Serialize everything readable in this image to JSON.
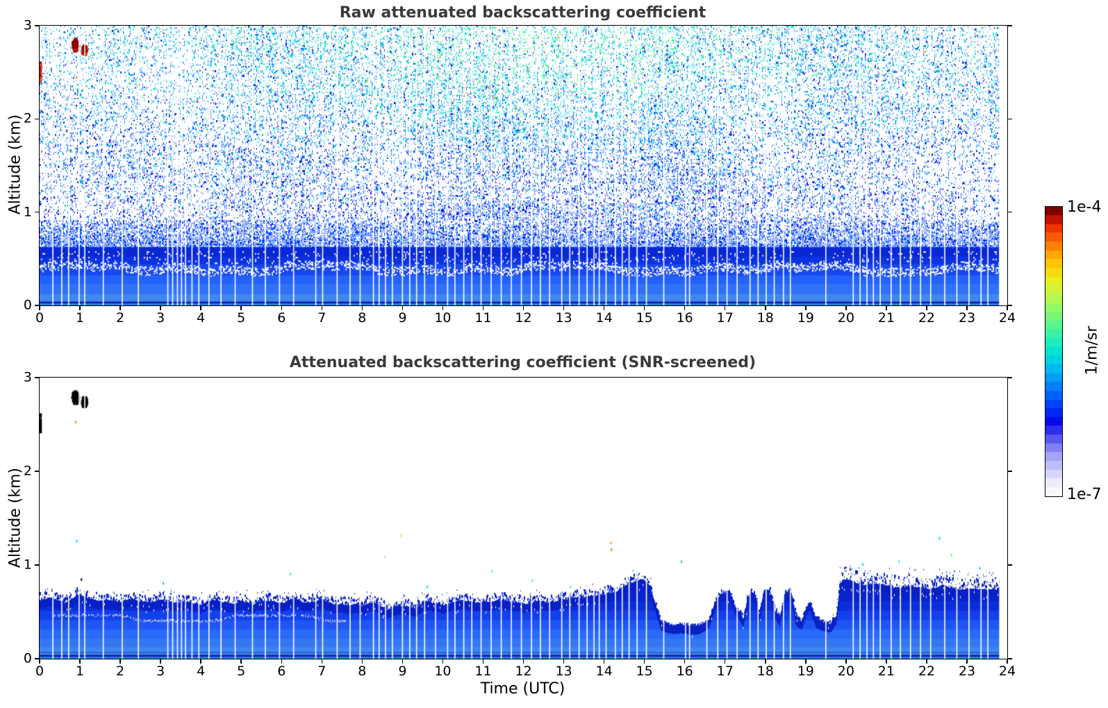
{
  "figure": {
    "background": "#ffffff"
  },
  "styles": {
    "title_color": "#3a3a3a",
    "axis_color": "#000000",
    "gap_color": "#ffffff"
  },
  "colorbar": {
    "label_top": "1e-4",
    "label_bottom": "1e-7",
    "unit": "1/m/sr",
    "scale": "log",
    "steps": 33,
    "colormap_stops": [
      [
        0.0,
        "#f8f8ff"
      ],
      [
        0.04,
        "#e8e8fc"
      ],
      [
        0.08,
        "#c8c8fa"
      ],
      [
        0.13,
        "#a0a0f8"
      ],
      [
        0.17,
        "#7070f4"
      ],
      [
        0.21,
        "#3838ee"
      ],
      [
        0.25,
        "#0808e8"
      ],
      [
        0.3,
        "#0038f8"
      ],
      [
        0.35,
        "#0068ff"
      ],
      [
        0.4,
        "#0098ff"
      ],
      [
        0.45,
        "#00c4f0"
      ],
      [
        0.5,
        "#00e4d0"
      ],
      [
        0.55,
        "#30f0b0"
      ],
      [
        0.6,
        "#60f488"
      ],
      [
        0.65,
        "#90f868"
      ],
      [
        0.7,
        "#c0f848"
      ],
      [
        0.75,
        "#e8ee20"
      ],
      [
        0.8,
        "#ffd000"
      ],
      [
        0.85,
        "#ffa000"
      ],
      [
        0.9,
        "#ff6000"
      ],
      [
        0.94,
        "#f03000"
      ],
      [
        0.97,
        "#c01000"
      ],
      [
        1.0,
        "#7c0000"
      ]
    ]
  },
  "chart_data": [
    {
      "type": "heatmap",
      "title": "Raw attenuated backscattering coefficient",
      "xlabel": "",
      "ylabel": "Altitude (km)",
      "xlim": [
        0,
        24
      ],
      "ylim": [
        0,
        3
      ],
      "xticks": [
        0,
        1,
        2,
        3,
        4,
        5,
        6,
        7,
        8,
        9,
        10,
        11,
        12,
        13,
        14,
        15,
        16,
        17,
        18,
        19,
        20,
        21,
        22,
        23,
        24
      ],
      "yticks": [
        0,
        1,
        2,
        3
      ],
      "legend": "none",
      "grid": false,
      "data_end_hour": 23.8,
      "seed": 42,
      "noise": {
        "base_density": 0.4,
        "cell": 2,
        "value_jitter": 0.12,
        "dark_dot_prob": 0.15,
        "lavender_prob": 0.02,
        "outlier_prob": 0.006
      },
      "dense_fuzz": {
        "t_lo": 9.0,
        "t_hi": 15.5,
        "alt_lo": 0.7,
        "alt_hi": 1.1,
        "extra": 0.22
      },
      "layer_bands": [
        [
          0.0,
          0.03,
          "#2e74f4"
        ],
        [
          0.03,
          0.048,
          "#0a1ca0"
        ],
        [
          0.048,
          0.13,
          "#4286f0"
        ],
        [
          0.13,
          0.24,
          "#2f72f8"
        ],
        [
          0.24,
          0.33,
          "#2261fa"
        ],
        [
          0.33,
          0.45,
          "#1848ee"
        ],
        [
          0.45,
          0.53,
          "#0d32e0"
        ],
        [
          0.53,
          0.625,
          "#0928d4"
        ]
      ],
      "layer_solid_top_km": 0.625,
      "layer_speckle_top_km": 0.92,
      "white_band": {
        "alt": 0.4,
        "amp": 0.035
      },
      "bottom_dash_color": "#00a878",
      "features": {
        "cloud_blobs": [
          {
            "t": 0.88,
            "alt": 2.8,
            "dt": 0.1,
            "dalt": 0.075,
            "color": "#8b0000",
            "fringe": "#d84000"
          },
          {
            "t": 1.1,
            "alt": 2.75,
            "dt": 0.08,
            "dalt": 0.06,
            "color": "#8b0000",
            "fringe": "#e06000"
          }
        ],
        "edge_streak": {
          "t": 0.02,
          "alt_lo": 2.4,
          "alt_hi": 2.62,
          "colors": [
            "#a00000",
            "#ff6000",
            "#d04000"
          ]
        },
        "dots": [
          {
            "t": 0.9,
            "alt": 2.46,
            "color": "#ff8c00"
          }
        ]
      },
      "gap_hours": [
        0.33,
        0.55,
        0.72,
        0.98,
        1.12,
        1.58,
        2.05,
        2.45,
        3.18,
        3.3,
        3.42,
        3.52,
        3.62,
        3.78,
        3.95,
        4.2,
        4.5,
        4.85,
        5.28,
        5.6,
        5.95,
        6.3,
        6.85,
        7.02,
        7.38,
        7.7,
        7.95,
        8.28,
        8.42,
        8.58,
        8.75,
        9.0,
        9.18,
        9.35,
        9.55,
        9.82,
        10.12,
        10.3,
        10.52,
        10.72,
        10.95,
        11.2,
        11.45,
        11.7,
        11.95,
        12.2,
        12.42,
        12.65,
        12.95,
        13.15,
        13.38,
        13.58,
        13.75,
        13.88,
        14.05,
        14.28,
        14.45,
        14.62,
        14.82,
        15.05,
        15.48,
        16.02,
        16.12,
        16.55,
        16.82,
        17.05,
        17.3,
        17.62,
        17.82,
        18.02,
        18.22,
        18.45,
        18.62,
        19.5,
        20.18,
        20.35,
        20.52,
        20.68,
        20.85,
        21.12,
        21.35,
        21.6,
        21.85,
        22.1,
        22.45,
        22.75,
        23.05,
        23.35,
        23.52
      ]
    },
    {
      "type": "heatmap",
      "title": "Attenuated backscattering coefficient (SNR-screened)",
      "xlabel": "Time (UTC)",
      "ylabel": "Altitude (km)",
      "xlim": [
        0,
        24
      ],
      "ylim": [
        0,
        3
      ],
      "xticks": [
        0,
        1,
        2,
        3,
        4,
        5,
        6,
        7,
        8,
        9,
        10,
        11,
        12,
        13,
        14,
        15,
        16,
        17,
        18,
        19,
        20,
        21,
        22,
        23,
        24
      ],
      "yticks": [
        0,
        1,
        2,
        3
      ],
      "legend": "none",
      "grid": false,
      "data_end_hour": 23.8,
      "seed": 7,
      "layer_top_profile": {
        "t": [
          0,
          0.3,
          0.6,
          1.0,
          1.35,
          1.7,
          2.0,
          2.3,
          2.7,
          3.0,
          3.3,
          3.7,
          4.0,
          4.3,
          4.7,
          5.0,
          5.3,
          5.6,
          6.0,
          6.3,
          6.6,
          7.0,
          7.3,
          7.6,
          8.0,
          8.3,
          8.6,
          9.0,
          9.3,
          9.6,
          10.0,
          10.4,
          10.8,
          11.2,
          11.6,
          12.0,
          12.4,
          12.8,
          13.2,
          13.6,
          14.0,
          14.3,
          14.6,
          14.9,
          15.1,
          15.25,
          15.4,
          15.7,
          16.0,
          16.3,
          16.6,
          16.75,
          16.9,
          17.1,
          17.25,
          17.35,
          17.45,
          17.55,
          17.65,
          17.75,
          17.85,
          17.95,
          18.1,
          18.2,
          18.35,
          18.5,
          18.65,
          18.75,
          18.9,
          19.0,
          19.1,
          19.25,
          19.4,
          19.6,
          19.75,
          19.85,
          20.0,
          20.4,
          20.8,
          21.2,
          21.6,
          22.0,
          22.4,
          22.8,
          23.2,
          23.5,
          23.8
        ],
        "h": [
          0.63,
          0.66,
          0.6,
          0.68,
          0.62,
          0.63,
          0.6,
          0.64,
          0.6,
          0.63,
          0.6,
          0.62,
          0.58,
          0.62,
          0.59,
          0.62,
          0.58,
          0.62,
          0.6,
          0.64,
          0.6,
          0.62,
          0.58,
          0.6,
          0.55,
          0.6,
          0.52,
          0.58,
          0.54,
          0.62,
          0.58,
          0.62,
          0.6,
          0.63,
          0.6,
          0.58,
          0.62,
          0.6,
          0.64,
          0.66,
          0.68,
          0.72,
          0.8,
          0.85,
          0.8,
          0.6,
          0.38,
          0.35,
          0.36,
          0.34,
          0.42,
          0.62,
          0.7,
          0.72,
          0.55,
          0.5,
          0.42,
          0.65,
          0.72,
          0.68,
          0.48,
          0.7,
          0.74,
          0.55,
          0.45,
          0.72,
          0.7,
          0.45,
          0.42,
          0.55,
          0.62,
          0.42,
          0.38,
          0.36,
          0.45,
          0.82,
          0.86,
          0.78,
          0.8,
          0.76,
          0.78,
          0.75,
          0.78,
          0.74,
          0.76,
          0.73,
          0.74
        ]
      },
      "layer_bands": [
        [
          0.0,
          0.03,
          "#2e74f4"
        ],
        [
          0.03,
          0.048,
          "#0a1ca0"
        ],
        [
          0.048,
          0.13,
          "#3e85f0"
        ],
        [
          0.13,
          0.22,
          "#3377f5"
        ],
        [
          0.22,
          0.32,
          "#2a6af8"
        ],
        [
          0.32,
          0.42,
          "#1e55f4"
        ],
        [
          0.42,
          0.52,
          "#1240ea"
        ],
        [
          0.52,
          0.62,
          "#0b2eda"
        ],
        [
          0.62,
          1.05,
          "#0a24cc"
        ]
      ],
      "layer_top_color": "#0820c4",
      "ragged": [
        {
          "t_lo": 0.0,
          "t_hi": 15.2,
          "amp": 0.09,
          "hole_p": 0.1,
          "speck_p": 0.1
        },
        {
          "t_lo": 15.25,
          "t_hi": 16.55,
          "amp": 0.03,
          "hole_p": 0.02,
          "speck_p": 0.02
        },
        {
          "t_lo": 16.6,
          "t_hi": 19.7,
          "amp": 0.05,
          "hole_p": 0.05,
          "speck_p": 0.04
        },
        {
          "t_lo": 19.75,
          "t_hi": 23.8,
          "amp": 0.14,
          "hole_p": 0.2,
          "speck_p": 0.3
        }
      ],
      "white_streak": {
        "t_lo": 0.3,
        "t_hi": 7.6,
        "alt": 0.44,
        "amp": 0.03
      },
      "bottom_dash_color": "#00a878",
      "features": {
        "black_blobs": [
          {
            "t": 0.88,
            "alt": 2.8,
            "dt": 0.1,
            "dalt": 0.075,
            "color": "#000000"
          },
          {
            "t": 1.1,
            "alt": 2.75,
            "dt": 0.08,
            "dalt": 0.06,
            "color": "#000000"
          }
        ],
        "edge_streak": {
          "t": 0.02,
          "alt_lo": 2.42,
          "alt_hi": 2.62,
          "colors": [
            "#000000"
          ]
        },
        "dots": [
          {
            "t": 0.88,
            "alt": 2.54,
            "color": "#ff8c00"
          },
          {
            "t": 0.9,
            "alt": 1.27,
            "color": "#00e0ff"
          },
          {
            "t": 1.02,
            "alt": 0.86,
            "color": "#1a1a1a"
          },
          {
            "t": 3.05,
            "alt": 0.82,
            "color": "#00d0ff"
          },
          {
            "t": 6.2,
            "alt": 0.92,
            "color": "#70e880"
          },
          {
            "t": 8.55,
            "alt": 1.1,
            "color": "#84ee5c"
          },
          {
            "t": 8.95,
            "alt": 1.33,
            "color": "#a8f050"
          },
          {
            "t": 9.6,
            "alt": 0.78,
            "color": "#00e0d0"
          },
          {
            "t": 11.2,
            "alt": 0.95,
            "color": "#00c8ff"
          },
          {
            "t": 12.2,
            "alt": 0.85,
            "color": "#00e0ff"
          },
          {
            "t": 13.15,
            "alt": 0.78,
            "color": "#00d0e0"
          },
          {
            "t": 14.15,
            "alt": 1.25,
            "color": "#ffa000"
          },
          {
            "t": 14.17,
            "alt": 1.18,
            "color": "#ff7800"
          },
          {
            "t": 15.9,
            "alt": 1.05,
            "color": "#00e0c0"
          },
          {
            "t": 20.4,
            "alt": 1.02,
            "color": "#00d0ff"
          },
          {
            "t": 21.3,
            "alt": 1.05,
            "color": "#40e0ff"
          },
          {
            "t": 22.3,
            "alt": 1.3,
            "color": "#00e0e0"
          },
          {
            "t": 22.6,
            "alt": 1.12,
            "color": "#80f080"
          },
          {
            "t": 23.3,
            "alt": 0.98,
            "color": "#00c0ff"
          }
        ]
      },
      "gap_hours": [
        0.33,
        0.55,
        0.72,
        0.98,
        1.12,
        1.58,
        2.05,
        2.45,
        3.18,
        3.3,
        3.42,
        3.52,
        3.62,
        3.78,
        3.95,
        4.2,
        4.5,
        4.85,
        5.28,
        5.6,
        5.95,
        6.3,
        6.85,
        7.02,
        7.38,
        7.7,
        7.95,
        8.28,
        8.42,
        8.58,
        8.75,
        9.0,
        9.18,
        9.35,
        9.55,
        9.82,
        10.12,
        10.3,
        10.52,
        10.72,
        10.95,
        11.2,
        11.45,
        11.7,
        11.95,
        12.2,
        12.42,
        12.65,
        12.95,
        13.15,
        13.38,
        13.58,
        13.75,
        13.88,
        14.05,
        14.28,
        14.45,
        14.62,
        14.82,
        15.05,
        15.48,
        16.02,
        16.12,
        16.55,
        16.82,
        17.05,
        17.3,
        17.62,
        17.82,
        18.02,
        18.22,
        18.45,
        18.62,
        19.5,
        20.18,
        20.35,
        20.52,
        20.68,
        20.85,
        21.12,
        21.35,
        21.6,
        21.85,
        22.1,
        22.45,
        22.75,
        23.05,
        23.35,
        23.52
      ]
    }
  ]
}
